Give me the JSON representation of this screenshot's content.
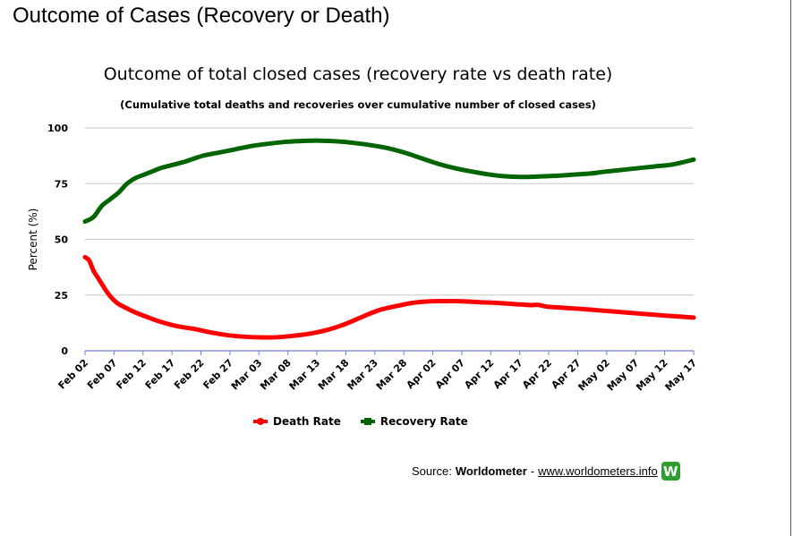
{
  "page": {
    "heading": "Outcome of Cases (Recovery or Death)"
  },
  "chart_data": {
    "type": "line",
    "title": "Outcome of total closed cases (recovery rate vs death rate)",
    "subtitle": "(Cumulative total deaths and recoveries over cumulative number of closed cases)",
    "ylabel": "Percent (%)",
    "xlabel": "",
    "ylim": [
      0,
      100
    ],
    "yticks": [
      0,
      25,
      50,
      75,
      100
    ],
    "xticks": [
      "Feb 02",
      "Feb 07",
      "Feb 12",
      "Feb 17",
      "Feb 22",
      "Feb 27",
      "Mar 03",
      "Mar 08",
      "Mar 13",
      "Mar 18",
      "Mar 23",
      "Mar 28",
      "Apr 02",
      "Apr 07",
      "Apr 12",
      "Apr 17",
      "Apr 22",
      "Apr 27",
      "May 02",
      "May 07",
      "May 12",
      "May 17"
    ],
    "x_count": 108,
    "grid": true,
    "legend_position": "bottom",
    "series": [
      {
        "name": "Death Rate",
        "color": "#ff0000",
        "marker": "circle",
        "keypoints": [
          [
            0,
            42
          ],
          [
            1,
            40.5
          ],
          [
            2,
            36
          ],
          [
            3,
            33
          ],
          [
            4,
            30
          ],
          [
            5,
            27
          ],
          [
            6,
            24.5
          ],
          [
            7,
            22.5
          ],
          [
            8,
            21
          ],
          [
            10,
            19
          ],
          [
            12,
            17.2
          ],
          [
            15,
            15
          ],
          [
            18,
            13
          ],
          [
            22,
            11
          ],
          [
            26,
            9.8
          ],
          [
            30,
            8.2
          ],
          [
            34,
            7
          ],
          [
            38,
            6.3
          ],
          [
            42,
            6.0
          ],
          [
            46,
            6.1
          ],
          [
            50,
            6.8
          ],
          [
            54,
            7.8
          ],
          [
            58,
            9.5
          ],
          [
            62,
            12
          ],
          [
            66,
            15.2
          ],
          [
            70,
            18.2
          ],
          [
            74,
            20
          ],
          [
            78,
            21.5
          ],
          [
            82,
            22.2
          ],
          [
            86,
            22.3
          ],
          [
            90,
            22.2
          ],
          [
            94,
            21.8
          ],
          [
            98,
            21.5
          ],
          [
            102,
            21.0
          ],
          [
            106,
            20.5
          ],
          [
            108,
            20.6
          ],
          [
            110,
            19.8
          ],
          [
            114,
            19.3
          ],
          [
            118,
            18.8
          ],
          [
            122,
            18.2
          ],
          [
            126,
            17.6
          ],
          [
            130,
            17.0
          ],
          [
            134,
            16.4
          ],
          [
            138,
            15.8
          ],
          [
            142,
            15.3
          ],
          [
            145,
            14.9
          ]
        ]
      },
      {
        "name": "Recovery Rate",
        "color": "#006400",
        "marker": "square",
        "keypoints": [
          [
            0,
            58
          ],
          [
            2,
            60
          ],
          [
            4,
            65
          ],
          [
            6,
            68
          ],
          [
            8,
            71
          ],
          [
            10,
            75
          ],
          [
            12,
            77.5
          ],
          [
            14,
            79
          ],
          [
            16,
            80.5
          ],
          [
            18,
            82
          ],
          [
            20,
            83
          ],
          [
            24,
            85
          ],
          [
            28,
            87.5
          ],
          [
            32,
            89
          ],
          [
            36,
            90.5
          ],
          [
            40,
            92
          ],
          [
            44,
            93
          ],
          [
            48,
            93.8
          ],
          [
            52,
            94.2
          ],
          [
            56,
            94.3
          ],
          [
            60,
            94.0
          ],
          [
            64,
            93.3
          ],
          [
            68,
            92.3
          ],
          [
            72,
            91
          ],
          [
            76,
            89
          ],
          [
            80,
            86.5
          ],
          [
            84,
            84
          ],
          [
            88,
            82
          ],
          [
            92,
            80.5
          ],
          [
            96,
            79.2
          ],
          [
            100,
            78.3
          ],
          [
            104,
            78.0
          ],
          [
            108,
            78.2
          ],
          [
            112,
            78.5
          ],
          [
            116,
            79
          ],
          [
            120,
            79.5
          ],
          [
            124,
            80.4
          ],
          [
            128,
            81.2
          ],
          [
            132,
            82.0
          ],
          [
            136,
            82.8
          ],
          [
            140,
            83.6
          ],
          [
            145,
            85.8
          ]
        ]
      }
    ]
  },
  "legend": {
    "death_label": "Death Rate",
    "recovery_label": "Recovery Rate",
    "death_color": "#ff0000",
    "recovery_color": "#006400"
  },
  "source": {
    "prefix": "Source:",
    "brand": "Worldometer",
    "separator": "-",
    "link": "www.worldometers.info",
    "logo_letter": "W",
    "logo_color": "#2e9e2e"
  }
}
